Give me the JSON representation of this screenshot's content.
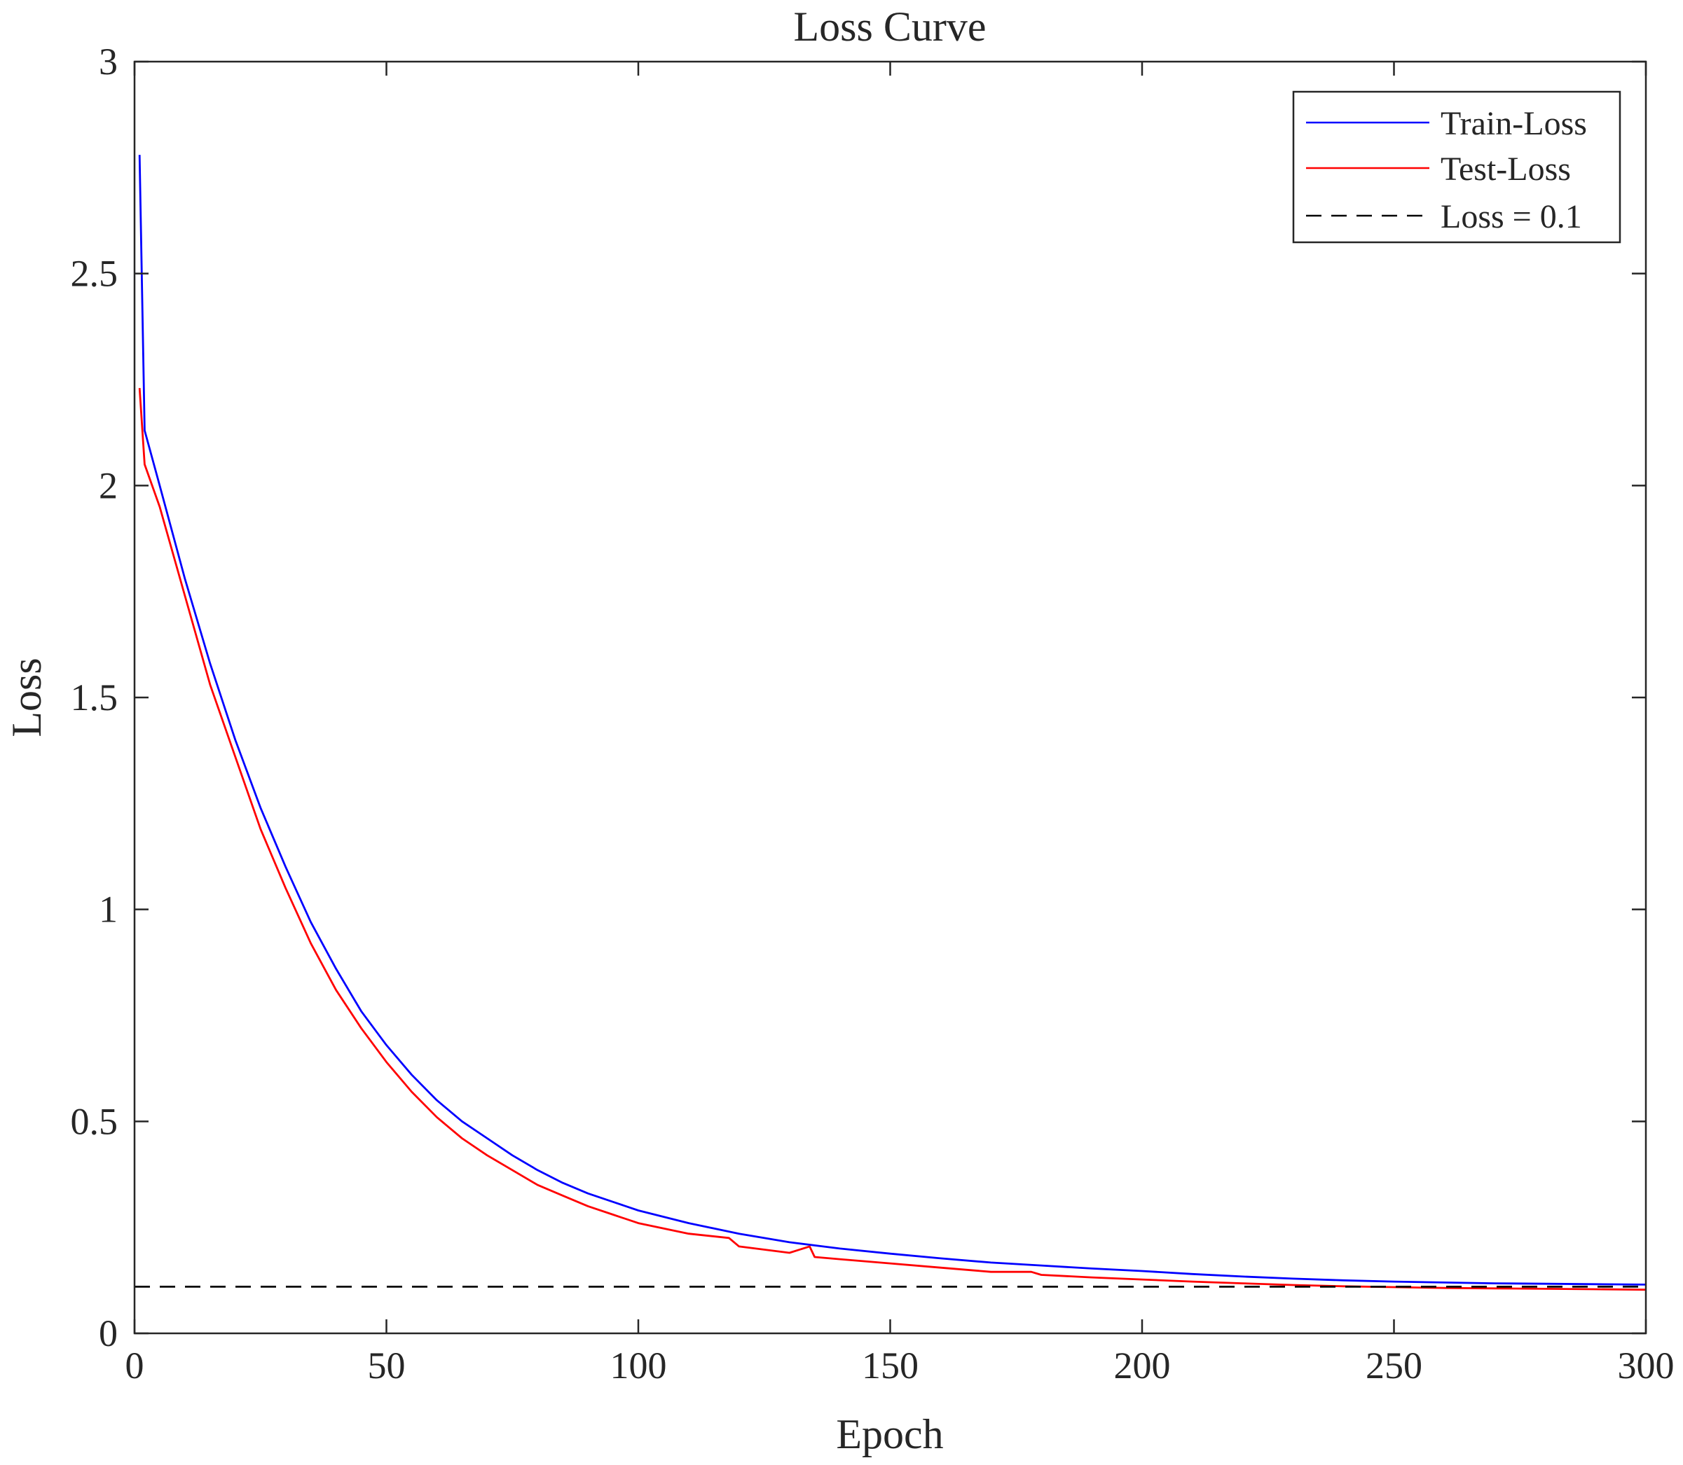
{
  "chart_data": {
    "type": "line",
    "title": "Loss Curve",
    "xlabel": "Epoch",
    "ylabel": "Loss",
    "xlim": [
      0,
      300
    ],
    "ylim": [
      0,
      3
    ],
    "xticks": [
      0,
      50,
      100,
      150,
      200,
      250,
      300
    ],
    "yticks": [
      0,
      0.5,
      1,
      1.5,
      2,
      2.5,
      3
    ],
    "xtick_labels": [
      "0",
      "50",
      "100",
      "150",
      "200",
      "250",
      "300"
    ],
    "ytick_labels": [
      "0",
      "0.5",
      "1",
      "1.5",
      "2",
      "2.5",
      "3"
    ],
    "grid": false,
    "legend_position": "top-right",
    "series": [
      {
        "name": "Train-Loss",
        "color": "#0000ff",
        "style": "solid",
        "x": [
          1,
          2,
          5,
          10,
          15,
          20,
          25,
          30,
          35,
          40,
          45,
          50,
          55,
          60,
          65,
          70,
          75,
          80,
          85,
          90,
          95,
          100,
          110,
          120,
          130,
          140,
          150,
          160,
          170,
          180,
          190,
          200,
          210,
          220,
          230,
          240,
          250,
          260,
          270,
          280,
          290,
          300
        ],
        "y": [
          2.78,
          2.13,
          2.0,
          1.78,
          1.58,
          1.4,
          1.24,
          1.1,
          0.97,
          0.86,
          0.76,
          0.68,
          0.61,
          0.55,
          0.5,
          0.46,
          0.42,
          0.385,
          0.355,
          0.33,
          0.31,
          0.29,
          0.26,
          0.235,
          0.215,
          0.2,
          0.188,
          0.177,
          0.167,
          0.16,
          0.153,
          0.147,
          0.14,
          0.134,
          0.129,
          0.125,
          0.122,
          0.12,
          0.118,
          0.117,
          0.116,
          0.115
        ]
      },
      {
        "name": "Test-Loss",
        "color": "#ff0000",
        "style": "solid",
        "x": [
          1,
          2,
          5,
          10,
          15,
          20,
          25,
          30,
          35,
          40,
          45,
          50,
          55,
          60,
          65,
          70,
          75,
          80,
          85,
          90,
          95,
          100,
          110,
          118,
          120,
          130,
          134,
          135,
          140,
          150,
          160,
          170,
          178,
          180,
          190,
          200,
          210,
          220,
          230,
          240,
          250,
          260,
          270,
          280,
          290,
          300
        ],
        "y": [
          2.23,
          2.05,
          1.95,
          1.74,
          1.53,
          1.36,
          1.19,
          1.05,
          0.92,
          0.81,
          0.72,
          0.64,
          0.57,
          0.51,
          0.46,
          0.42,
          0.385,
          0.35,
          0.325,
          0.3,
          0.28,
          0.26,
          0.235,
          0.225,
          0.205,
          0.19,
          0.205,
          0.18,
          0.175,
          0.165,
          0.155,
          0.145,
          0.145,
          0.138,
          0.132,
          0.127,
          0.122,
          0.118,
          0.114,
          0.111,
          0.109,
          0.107,
          0.106,
          0.105,
          0.104,
          0.103
        ]
      },
      {
        "name": "Loss = 0.1",
        "color": "#000000",
        "style": "dashed",
        "x": [
          0,
          300
        ],
        "y": [
          0.11,
          0.11
        ]
      }
    ]
  }
}
